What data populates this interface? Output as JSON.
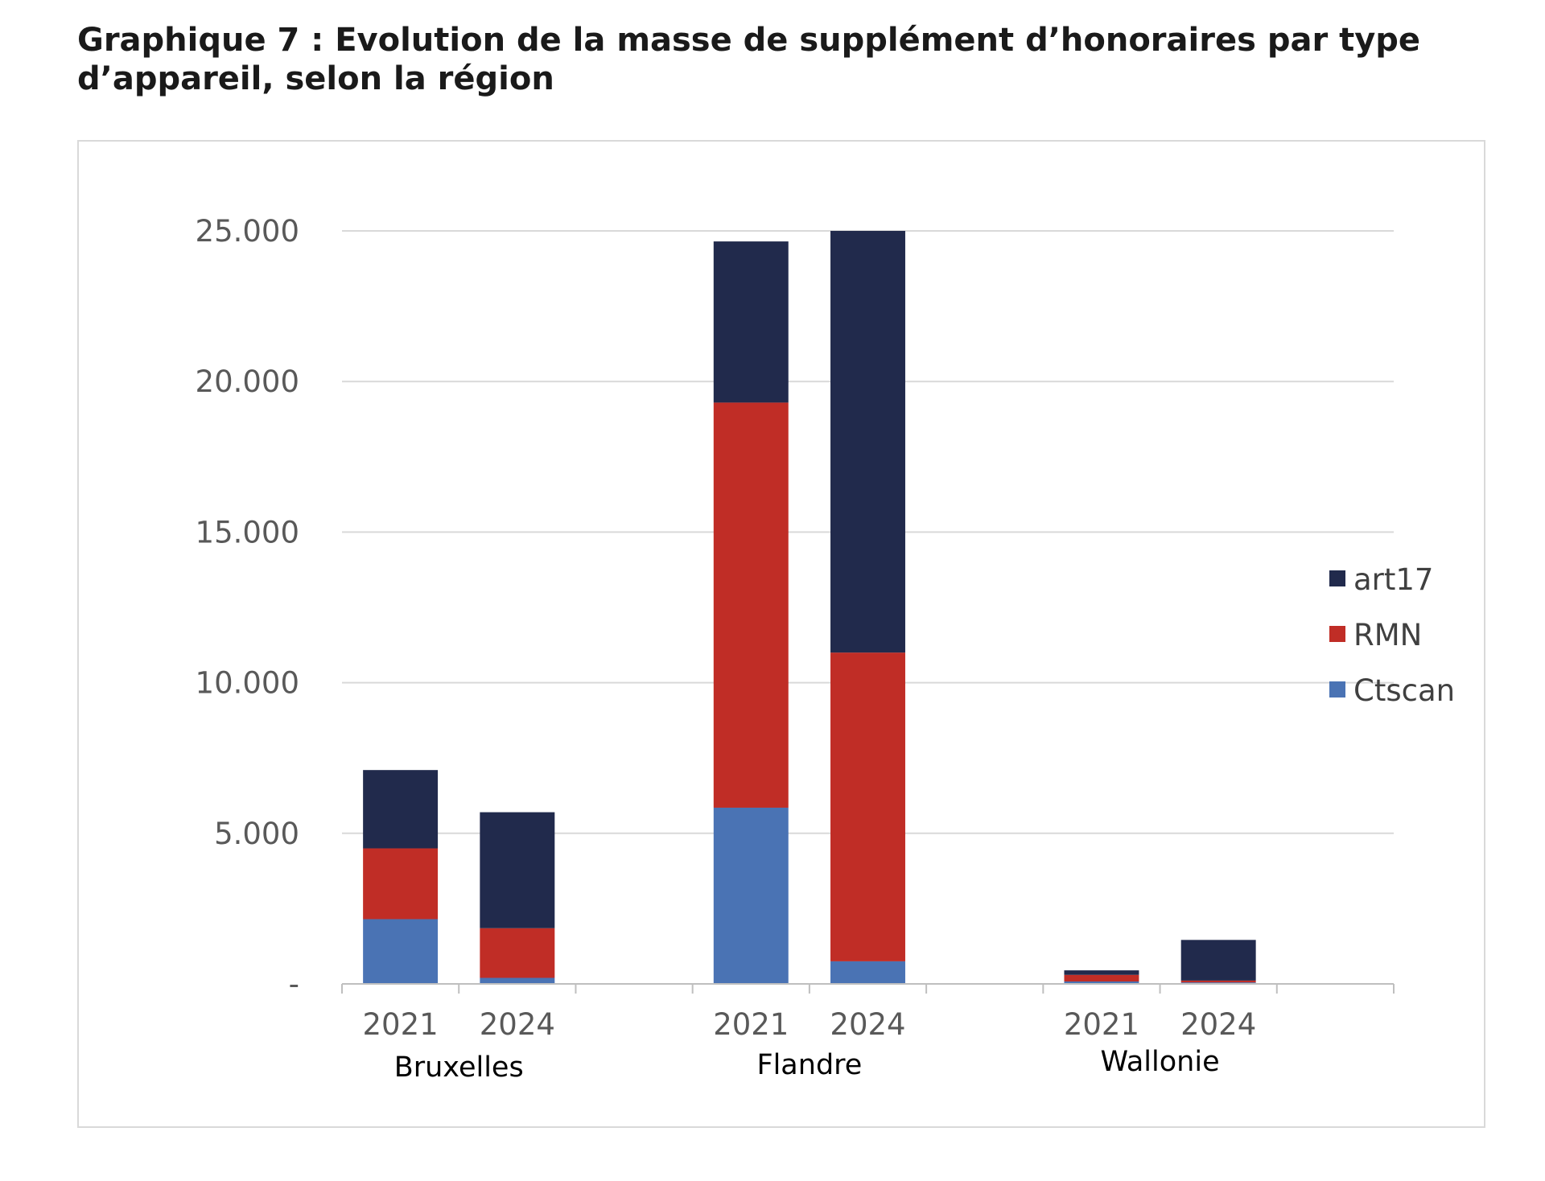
{
  "title": "Graphique 7 : Evolution de la masse de supplément d’honoraires par type d’appareil, selon la région",
  "colors": {
    "art17": "#212a4c",
    "RMN": "#c02d26",
    "Ctscan": "#4a73b4",
    "grid": "#d9d9d9",
    "axis": "#bfbfbf"
  },
  "chart_data": {
    "type": "bar",
    "stacked": true,
    "title": "Graphique 7 : Evolution de la masse de supplément d’honoraires par type d’appareil, selon la région",
    "groups": [
      "Bruxelles",
      "Flandre",
      "Wallonie"
    ],
    "categories": [
      "2021",
      "2024"
    ],
    "series": [
      {
        "name": "Ctscan",
        "values": [
          [
            2150,
            200
          ],
          [
            5850,
            750
          ],
          [
            80,
            50
          ]
        ]
      },
      {
        "name": "RMN",
        "values": [
          [
            2350,
            1650
          ],
          [
            13450,
            10250
          ],
          [
            220,
            60
          ]
        ]
      },
      {
        "name": "art17",
        "values": [
          [
            2600,
            3850
          ],
          [
            5350,
            14000
          ],
          [
            150,
            1350
          ]
        ]
      }
    ],
    "legend_order": [
      "art17",
      "RMN",
      "Ctscan"
    ],
    "legend_position": "right",
    "ylim": [
      0,
      25000
    ],
    "yticks": [
      0,
      5000,
      10000,
      15000,
      20000,
      25000
    ],
    "ytick_labels": [
      "-",
      "5.000",
      "10.000",
      "15.000",
      "20.000",
      "25.000"
    ],
    "grid": true,
    "xlabel": "",
    "ylabel": ""
  }
}
